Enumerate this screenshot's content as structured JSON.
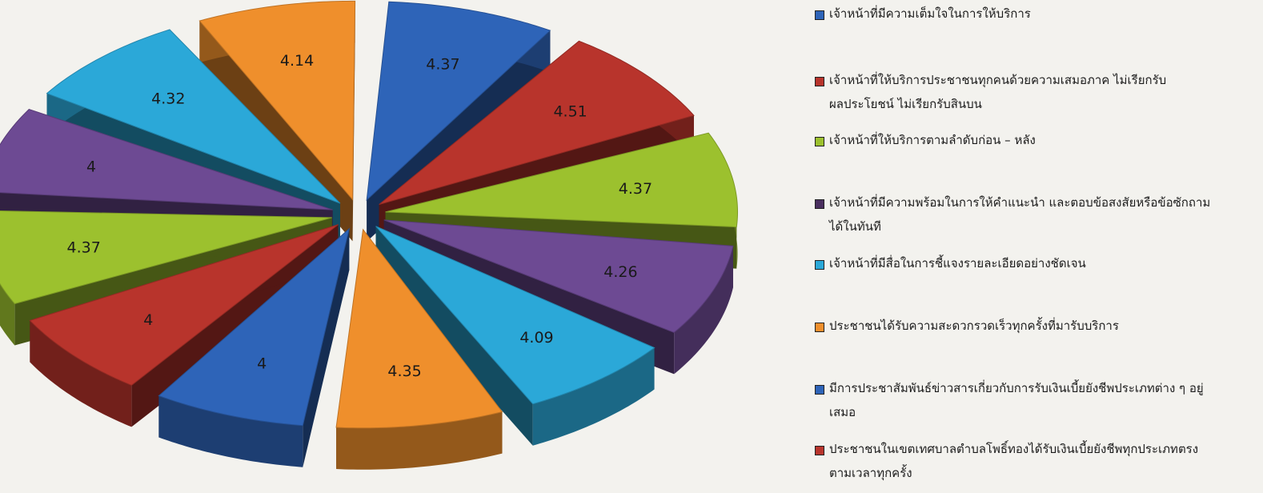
{
  "chart_data": {
    "type": "pie",
    "title": "",
    "slices": [
      {
        "value": 4.37,
        "label": "4.37",
        "color": "#2e64b8",
        "name": "เจ้าหน้าที่มีความเต็มใจในการให้บริการ"
      },
      {
        "value": 4.51,
        "label": "4.51",
        "color": "#b8342c",
        "name": "เจ้าหน้าที่ให้บริการประชาชนทุกคนด้วยความเสมอภาค ไม่เรียกรับผลประโยชน์ ไม่เรียกรับสินบน"
      },
      {
        "value": 4.37,
        "label": "4.37",
        "color": "#9cc12e",
        "name": "เจ้าหน้าที่ให้บริการตามลำดับก่อน – หลัง"
      },
      {
        "value": 4.26,
        "label": "4.26",
        "color": "#6d4a93",
        "name": "เจ้าหน้าที่มีความพร้อมในการให้คำแนะนำ และตอบข้อสงสัยหรือข้อซักถามได้ในทันที"
      },
      {
        "value": 4.09,
        "label": "4.09",
        "color": "#2ba8d8",
        "name": "เจ้าหน้าที่มีสื่อในการชี้แจงรายละเอียดอย่างชัดเจน"
      },
      {
        "value": 4.35,
        "label": "4.35",
        "color": "#ef8f2c",
        "name": "ประชาชนได้รับความสะดวกรวดเร็วทุกครั้งที่มารับบริการ"
      },
      {
        "value": 4.0,
        "label": "4",
        "color": "#2e64b8",
        "name": "มีการประชาสัมพันธ์ข่าวสารเกี่ยวกับการรับเงินเบี้ยยังชีพประเภทต่าง ๆ อยู่เสมอ"
      },
      {
        "value": 4.0,
        "label": "4",
        "color": "#b8342c",
        "name": "ประชาชนในเขตเทศบาลตำบลโพธิ์ทองได้รับเงินเบี้ยยังชีพทุกประเภทตรงตามเวลาทุกครั้ง"
      },
      {
        "value": 4.37,
        "label": "4.37",
        "color": "#9cc12e",
        "name": ""
      },
      {
        "value": 4.0,
        "label": "4",
        "color": "#6d4a93",
        "name": ""
      },
      {
        "value": 4.32,
        "label": "4.32",
        "color": "#2ba8d8",
        "name": ""
      },
      {
        "value": 4.14,
        "label": "4.14",
        "color": "#ef8f2c",
        "name": ""
      }
    ]
  },
  "legend": {
    "items": [
      {
        "lines": [
          "เจ้าหน้าที่มีความเต็มใจในการให้บริการ"
        ],
        "color": "#2e64b8"
      },
      {
        "lines": [
          "เจ้าหน้าที่ให้บริการประชาชนทุกคนด้วยความเสมอภาค ไม่เรียกรับ",
          "ผลประโยชน์ ไม่เรียกรับสินบน"
        ],
        "color": "#b8342c"
      },
      {
        "lines": [
          "เจ้าหน้าที่ให้บริการตามลำดับก่อน – หลัง"
        ],
        "color": "#9cc12e"
      },
      {
        "lines": [
          "เจ้าหน้าที่มีความพร้อมในการให้คำแนะนำ และตอบข้อสงสัยหรือข้อซักถาม",
          "ได้ในทันที"
        ],
        "color": "#4a2f5f"
      },
      {
        "lines": [
          "เจ้าหน้าที่มีสื่อในการชี้แจงรายละเอียดอย่างชัดเจน"
        ],
        "color": "#2ba8d8"
      },
      {
        "lines": [
          "ประชาชนได้รับความสะดวกรวดเร็วทุกครั้งที่มารับบริการ"
        ],
        "color": "#ef8f2c"
      },
      {
        "lines": [
          "มีการประชาสัมพันธ์ข่าวสารเกี่ยวกับการรับเงินเบี้ยยังชีพประเภทต่าง ๆ อยู่",
          "เสมอ"
        ],
        "color": "#2e64b8"
      },
      {
        "lines": [
          "ประชาชนในเขตเทศบาลตำบลโพธิ์ทองได้รับเงินเบี้ยยังชีพทุกประเภทตรง",
          "ตามเวลาทุกครั้ง"
        ],
        "color": "#b8342c"
      }
    ]
  }
}
